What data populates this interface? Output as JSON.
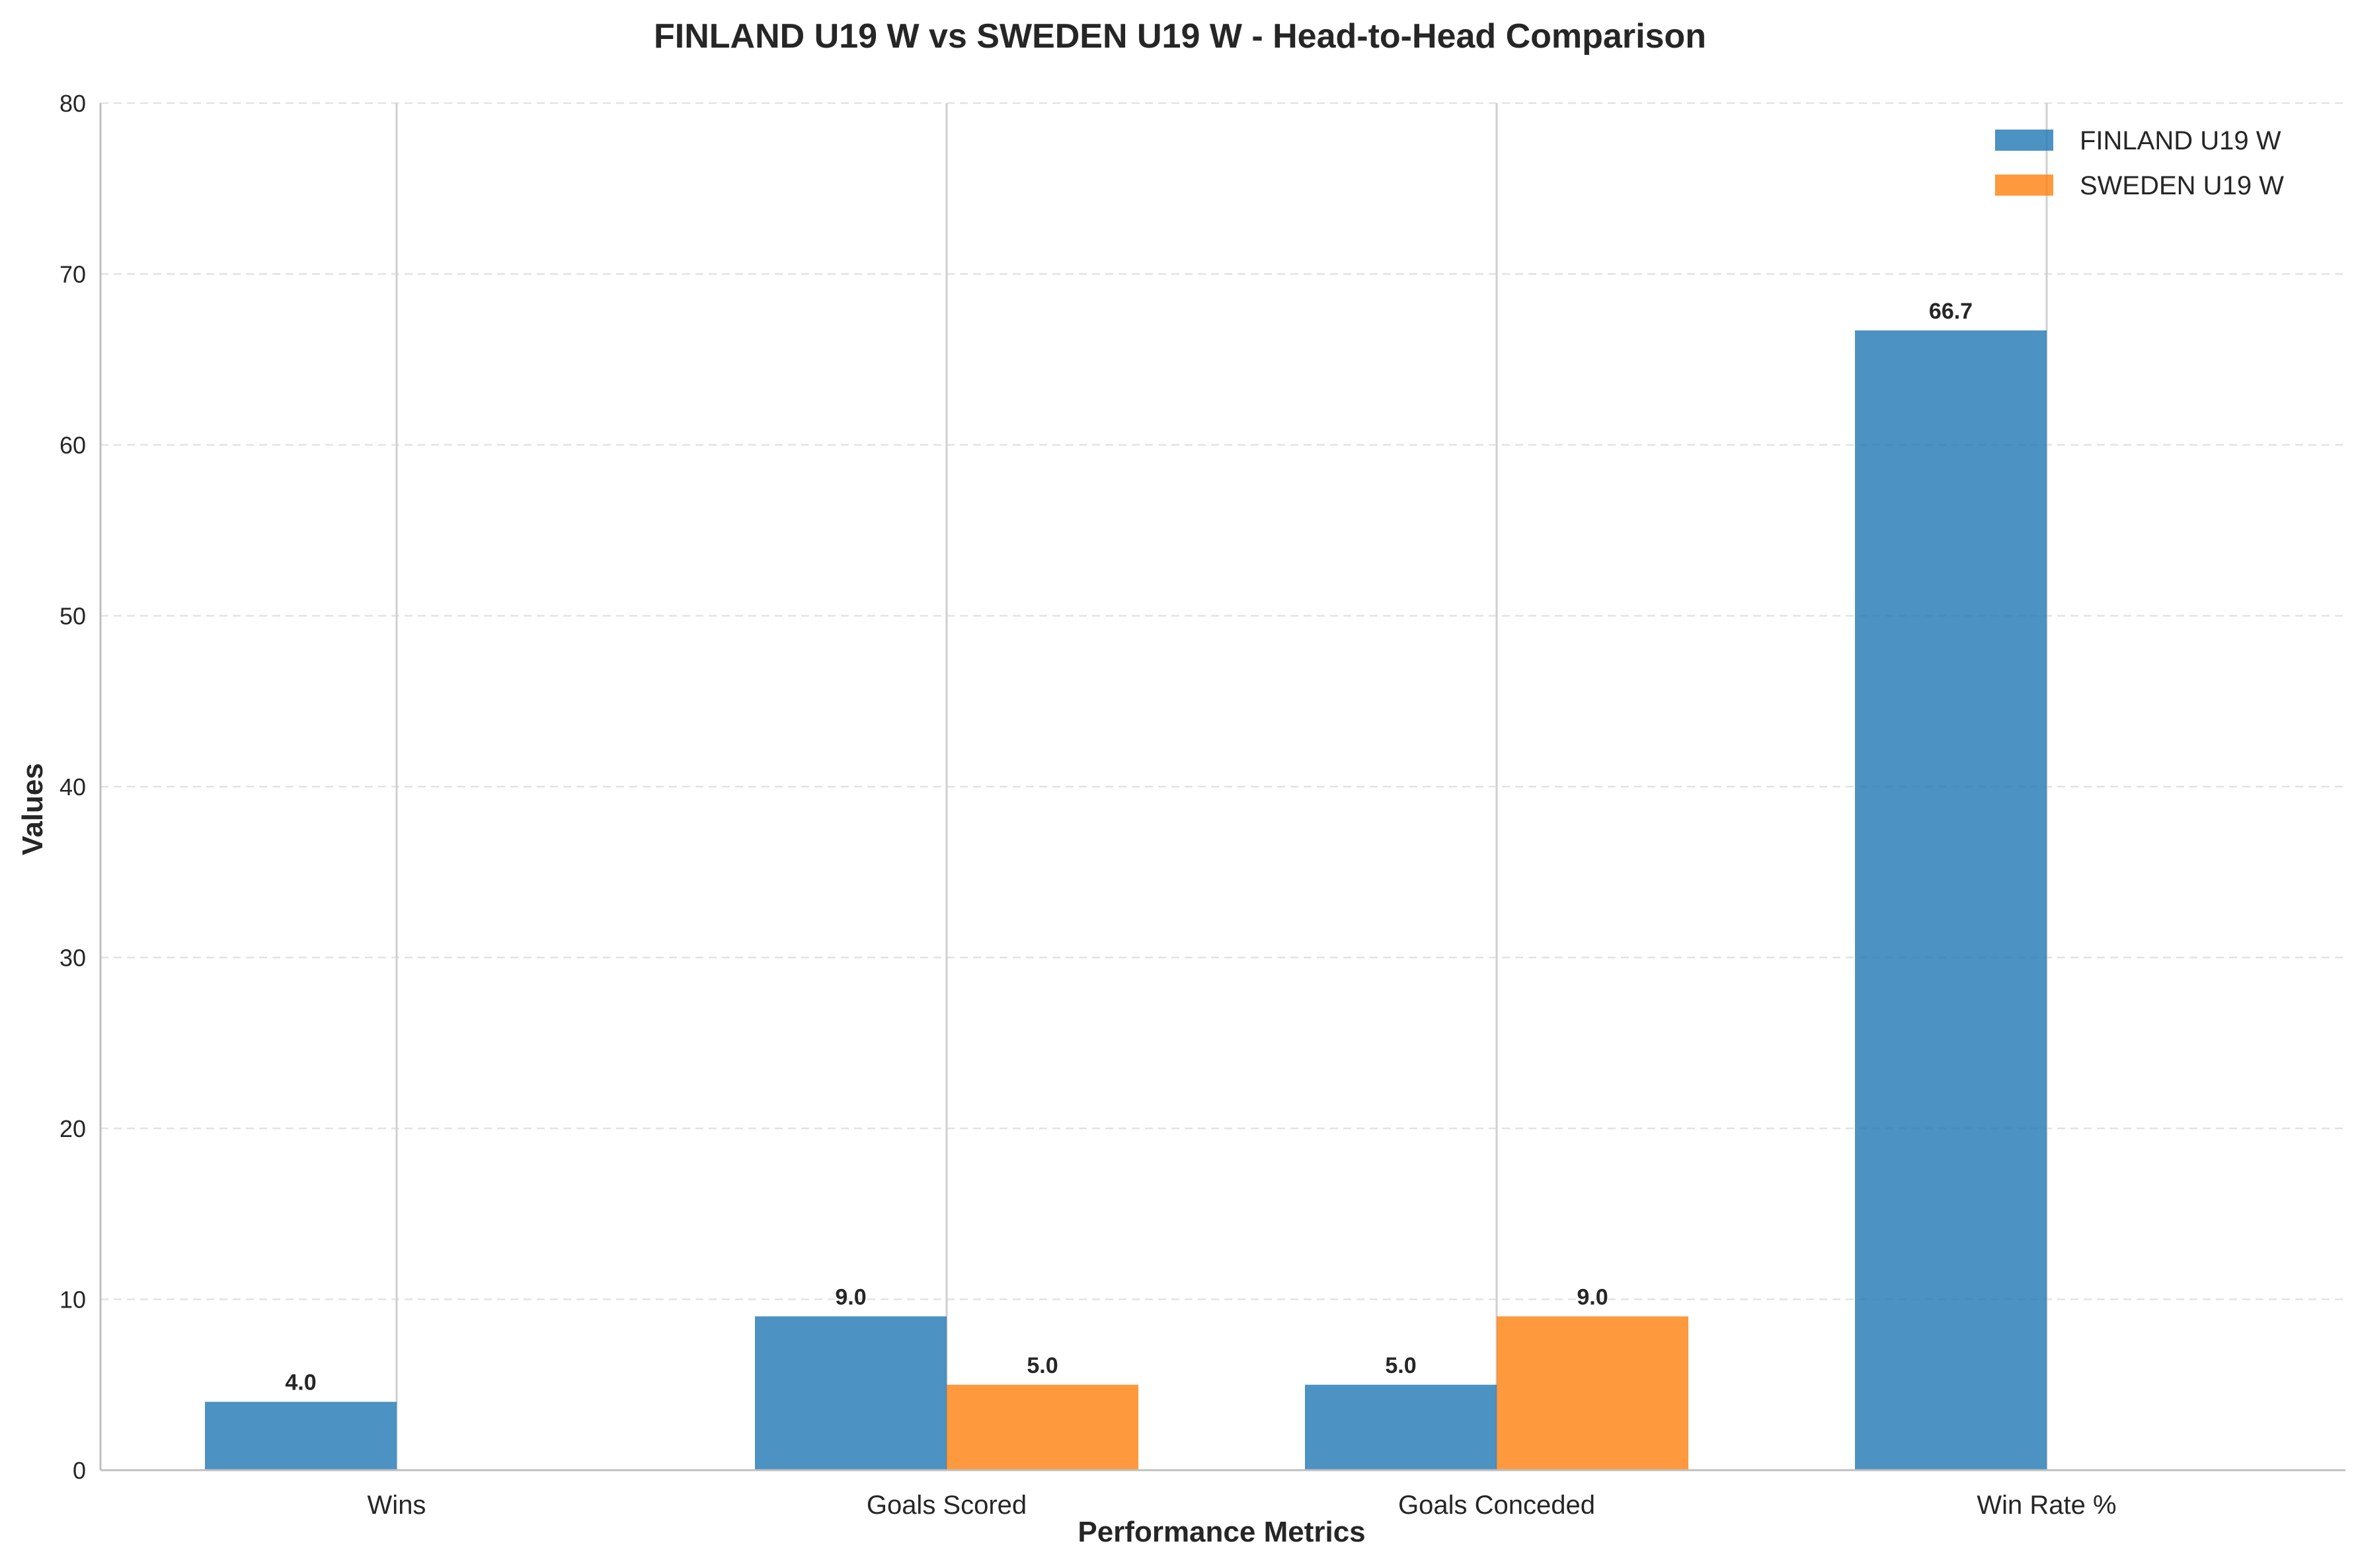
{
  "chart_data": {
    "type": "bar",
    "title": "FINLAND U19 W vs SWEDEN U19 W - Head-to-Head Comparison",
    "xlabel": "Performance Metrics",
    "ylabel": "Values",
    "categories": [
      "Wins",
      "Goals Scored",
      "Goals Conceded",
      "Win Rate %"
    ],
    "series": [
      {
        "name": "FINLAND U19 W",
        "color": "#1f77b4",
        "values": [
          4.0,
          9.0,
          5.0,
          66.7
        ],
        "labels": [
          "4.0",
          "9.0",
          "5.0",
          "66.7"
        ]
      },
      {
        "name": "SWEDEN U19 W",
        "color": "#ff7f0e",
        "values": [
          0,
          5.0,
          9.0,
          0
        ],
        "labels": [
          "",
          "5.0",
          "9.0",
          ""
        ]
      }
    ],
    "ylim": [
      0,
      80
    ],
    "yticks": [
      "0",
      "10",
      "20",
      "30",
      "40",
      "50",
      "60",
      "70",
      "80"
    ],
    "grid": true,
    "legend": "top-right"
  }
}
